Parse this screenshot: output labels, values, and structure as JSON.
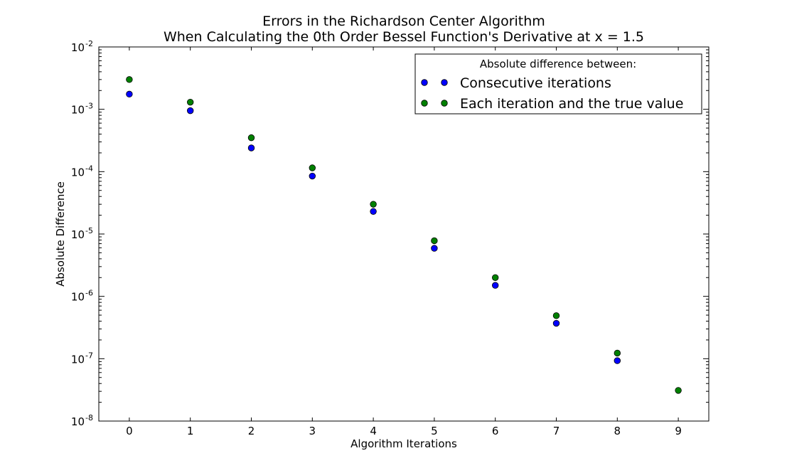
{
  "chart_data": {
    "type": "scatter",
    "title": "Errors in the Richardson Center Algorithm",
    "subtitle": "When Calculating the 0th Order Bessel Function's Derivative at x = 1.5",
    "xlabel": "Algorithm Iterations",
    "ylabel": "Absolute Difference",
    "xlim": [
      -0.5,
      9.5
    ],
    "ylim": [
      1e-08,
      0.01
    ],
    "yscale": "log",
    "x_ticks": [
      0,
      1,
      2,
      3,
      4,
      5,
      6,
      7,
      8,
      9
    ],
    "y_ticks": [
      {
        "value": 1e-08,
        "base": "10",
        "exp": "-8"
      },
      {
        "value": 1e-07,
        "base": "10",
        "exp": "-7"
      },
      {
        "value": 1e-06,
        "base": "10",
        "exp": "-6"
      },
      {
        "value": 1e-05,
        "base": "10",
        "exp": "-5"
      },
      {
        "value": 0.0001,
        "base": "10",
        "exp": "-4"
      },
      {
        "value": 0.001,
        "base": "10",
        "exp": "-3"
      },
      {
        "value": 0.01,
        "base": "10",
        "exp": "-2"
      }
    ],
    "grid": false,
    "legend": {
      "title": "Absolute difference between:",
      "placement": "top-right"
    },
    "series": [
      {
        "name": "Consecutive iterations",
        "color": "#0000ff",
        "x": [
          0,
          1,
          2,
          3,
          4,
          5,
          6,
          7,
          8
        ],
        "y": [
          0.00175,
          0.00095,
          0.00024,
          8.5e-05,
          2.3e-05,
          5.9e-06,
          1.5e-06,
          3.7e-07,
          9.3e-08
        ]
      },
      {
        "name": "Each iteration and the true value",
        "color": "#008000",
        "x": [
          0,
          1,
          2,
          3,
          4,
          5,
          6,
          7,
          8,
          9
        ],
        "y": [
          0.003,
          0.0013,
          0.00035,
          0.000115,
          3e-05,
          7.8e-06,
          2e-06,
          4.9e-07,
          1.23e-07,
          3.1e-08
        ]
      }
    ]
  }
}
